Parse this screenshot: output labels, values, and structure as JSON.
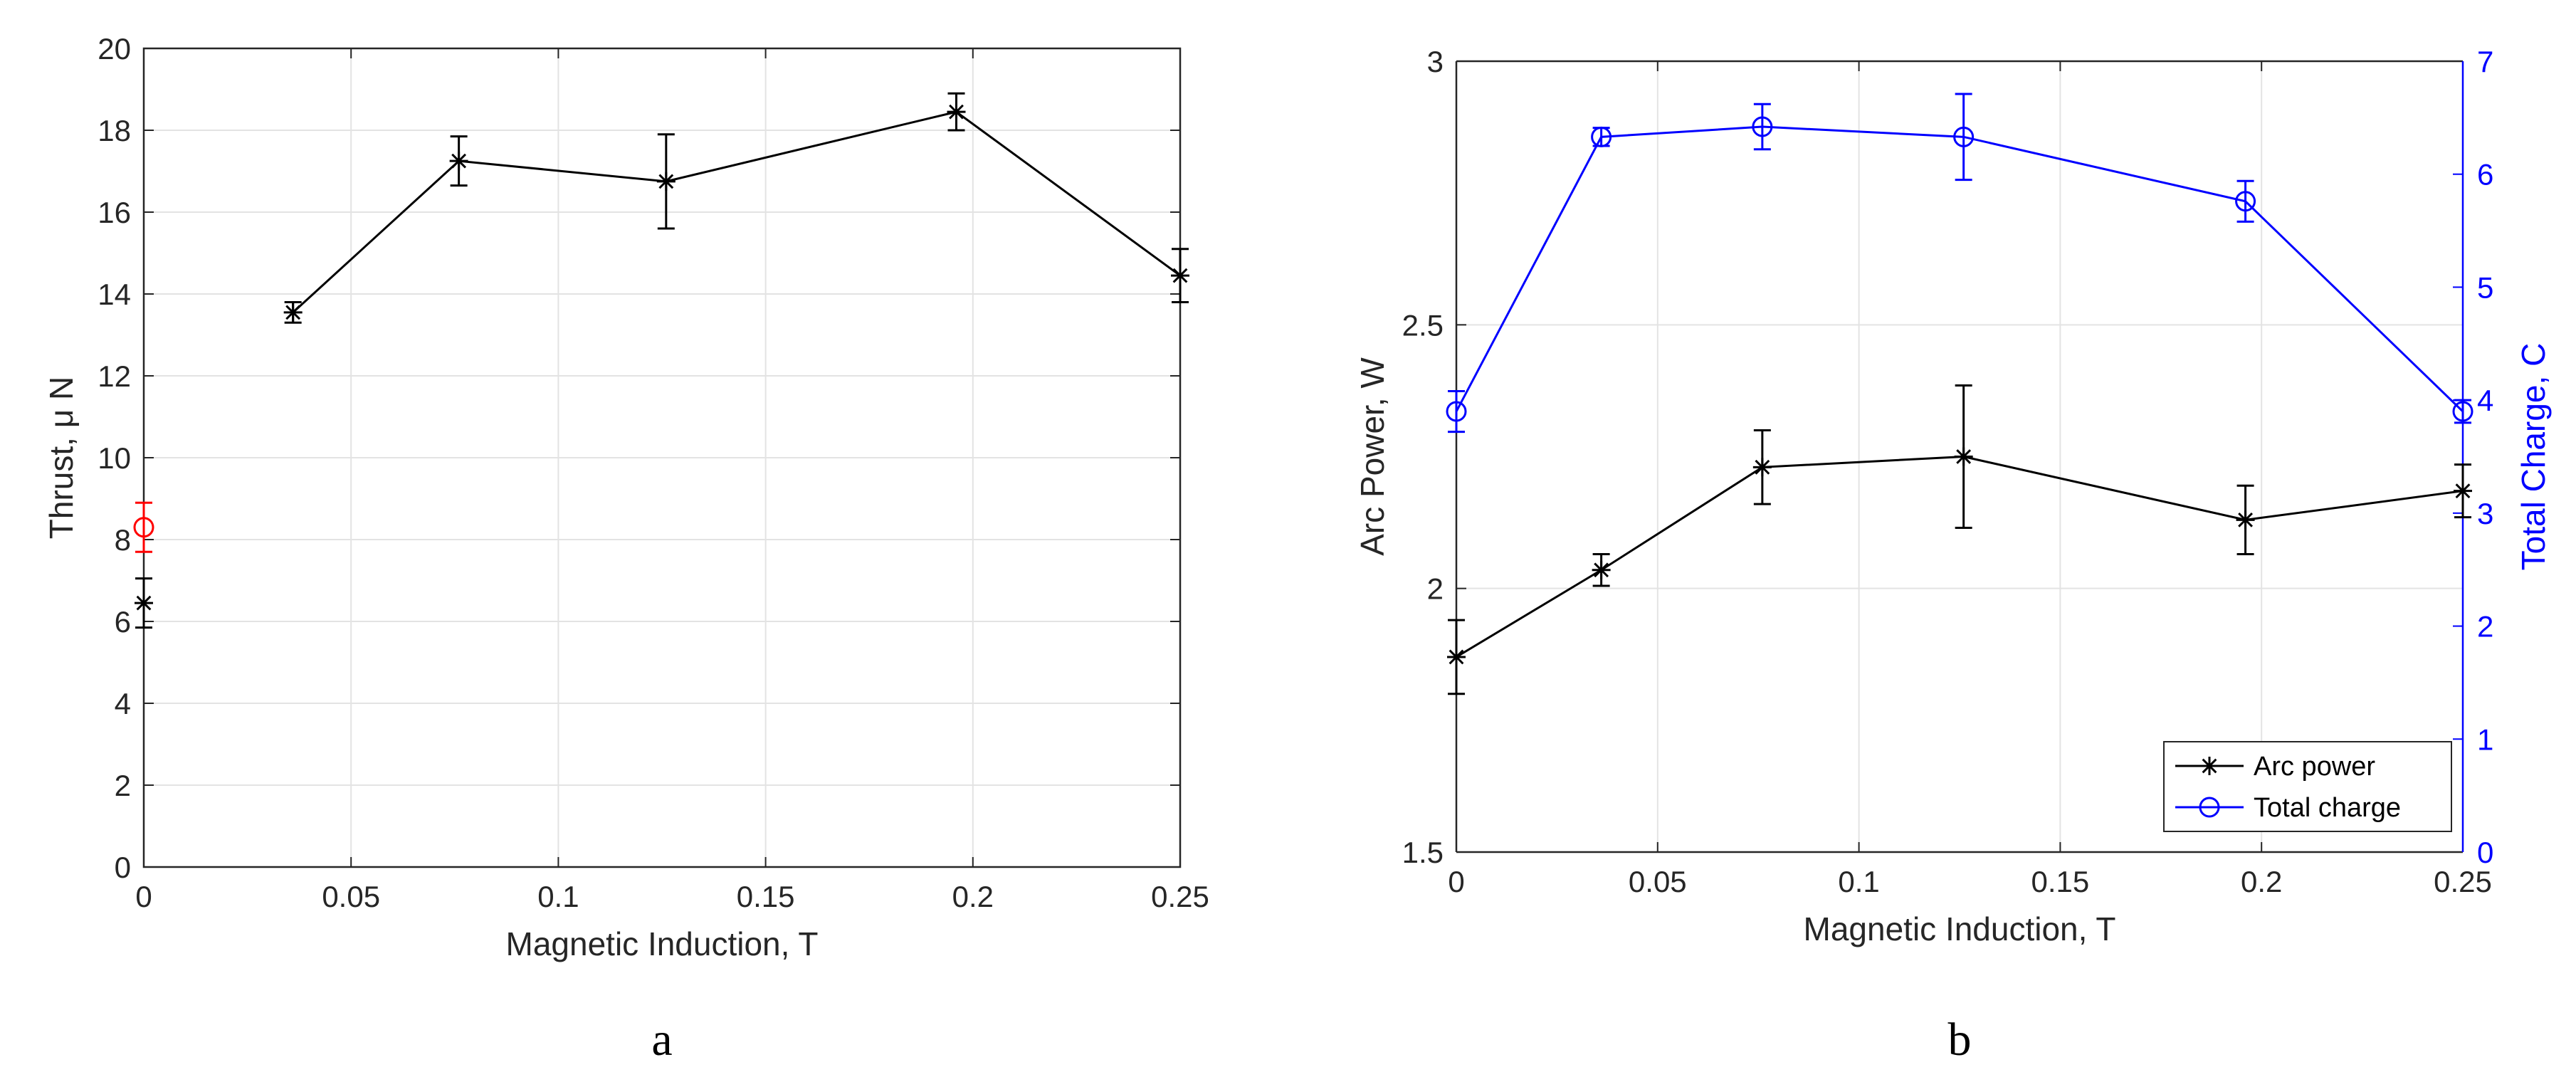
{
  "chart_data": [
    {
      "type": "line",
      "panel_label": "a",
      "xlabel": "Magnetic Induction, T",
      "ylabel": "Thrust, μ N",
      "xlim": [
        0,
        0.25
      ],
      "ylim": [
        0,
        20
      ],
      "xticks": [
        0,
        0.05,
        0.1,
        0.15,
        0.2,
        0.25
      ],
      "xtick_labels": [
        "0",
        "0.05",
        "0.1",
        "0.15",
        "0.2",
        "0.25"
      ],
      "yticks": [
        0,
        2,
        4,
        6,
        8,
        10,
        12,
        14,
        16,
        18,
        20
      ],
      "ytick_labels": [
        "0",
        "2",
        "4",
        "6",
        "8",
        "10",
        "12",
        "14",
        "16",
        "18",
        "20"
      ],
      "grid": true,
      "series": [
        {
          "marker": "asterisk",
          "color": "#000000",
          "points": [
            {
              "x": 0.0,
              "y": 6.45,
              "err": 0.6,
              "connected": false
            },
            {
              "x": 0.036,
              "y": 13.55,
              "err": 0.25,
              "connected": true
            },
            {
              "x": 0.076,
              "y": 17.25,
              "err": 0.6,
              "connected": true
            },
            {
              "x": 0.126,
              "y": 16.75,
              "err": 1.15,
              "connected": true
            },
            {
              "x": 0.196,
              "y": 18.45,
              "err": 0.45,
              "connected": true
            },
            {
              "x": 0.25,
              "y": 14.45,
              "err": 0.65,
              "connected": true
            }
          ]
        },
        {
          "marker": "circle",
          "color": "#ff0000",
          "points": [
            {
              "x": 0.0,
              "y": 8.3,
              "err": 0.6,
              "connected": true
            }
          ]
        }
      ]
    },
    {
      "type": "line",
      "panel_label": "b",
      "xlabel": "Magnetic Induction, T",
      "ylabel": "Arc Power, W",
      "ylabel_right": "Total Charge, C",
      "xlim": [
        0,
        0.25
      ],
      "ylim": [
        1.5,
        3
      ],
      "ylim_right": [
        0,
        7
      ],
      "xticks": [
        0,
        0.05,
        0.1,
        0.15,
        0.2,
        0.25
      ],
      "xtick_labels": [
        "0",
        "0.05",
        "0.1",
        "0.15",
        "0.2",
        "0.25"
      ],
      "yticks": [
        1.5,
        2,
        2.5,
        3
      ],
      "ytick_labels": [
        "1.5",
        "2",
        "2.5",
        "3"
      ],
      "yticks_right": [
        0,
        1,
        2,
        3,
        4,
        5,
        6,
        7
      ],
      "ytick_labels_right": [
        "0",
        "1",
        "2",
        "3",
        "4",
        "5",
        "6",
        "7"
      ],
      "grid": true,
      "legend_position": "bottom-right",
      "series": [
        {
          "name": "Arc power",
          "axis": "left",
          "marker": "asterisk",
          "color": "#000000",
          "x": [
            0.0,
            0.036,
            0.076,
            0.126,
            0.196,
            0.25
          ],
          "y": [
            1.87,
            2.035,
            2.23,
            2.25,
            2.13,
            2.185
          ],
          "err": [
            0.07,
            0.03,
            0.07,
            0.135,
            0.065,
            0.05
          ]
        },
        {
          "name": "Total charge",
          "axis": "right",
          "marker": "circle",
          "color": "#0000ff",
          "x": [
            0.0,
            0.036,
            0.076,
            0.126,
            0.196,
            0.25
          ],
          "y": [
            3.9,
            6.33,
            6.42,
            6.33,
            5.76,
            3.9
          ],
          "err": [
            0.18,
            0.08,
            0.2,
            0.38,
            0.18,
            0.1
          ]
        }
      ]
    }
  ]
}
